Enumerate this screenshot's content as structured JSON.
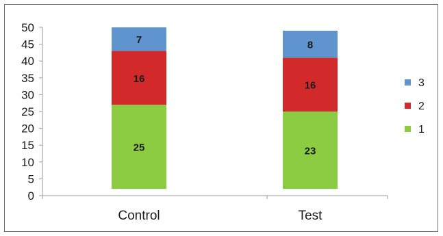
{
  "chart_data": {
    "type": "bar",
    "stacked": true,
    "categories": [
      "Control",
      "Test"
    ],
    "series": [
      {
        "name": "1",
        "values": [
          25,
          23
        ],
        "color": "#8ccc43"
      },
      {
        "name": "2",
        "values": [
          16,
          16
        ],
        "color": "#d22a2a"
      },
      {
        "name": "3",
        "values": [
          7,
          8
        ],
        "color": "#5f94cf"
      }
    ],
    "ylim": [
      0,
      50
    ],
    "yticks": [
      0,
      5,
      10,
      15,
      20,
      25,
      30,
      35,
      40,
      45,
      50
    ],
    "bar_baseline": 2,
    "title": "",
    "xlabel": "",
    "ylabel": "",
    "grid": false,
    "legend_position": "right",
    "legend_order": [
      "3",
      "2",
      "1"
    ]
  }
}
